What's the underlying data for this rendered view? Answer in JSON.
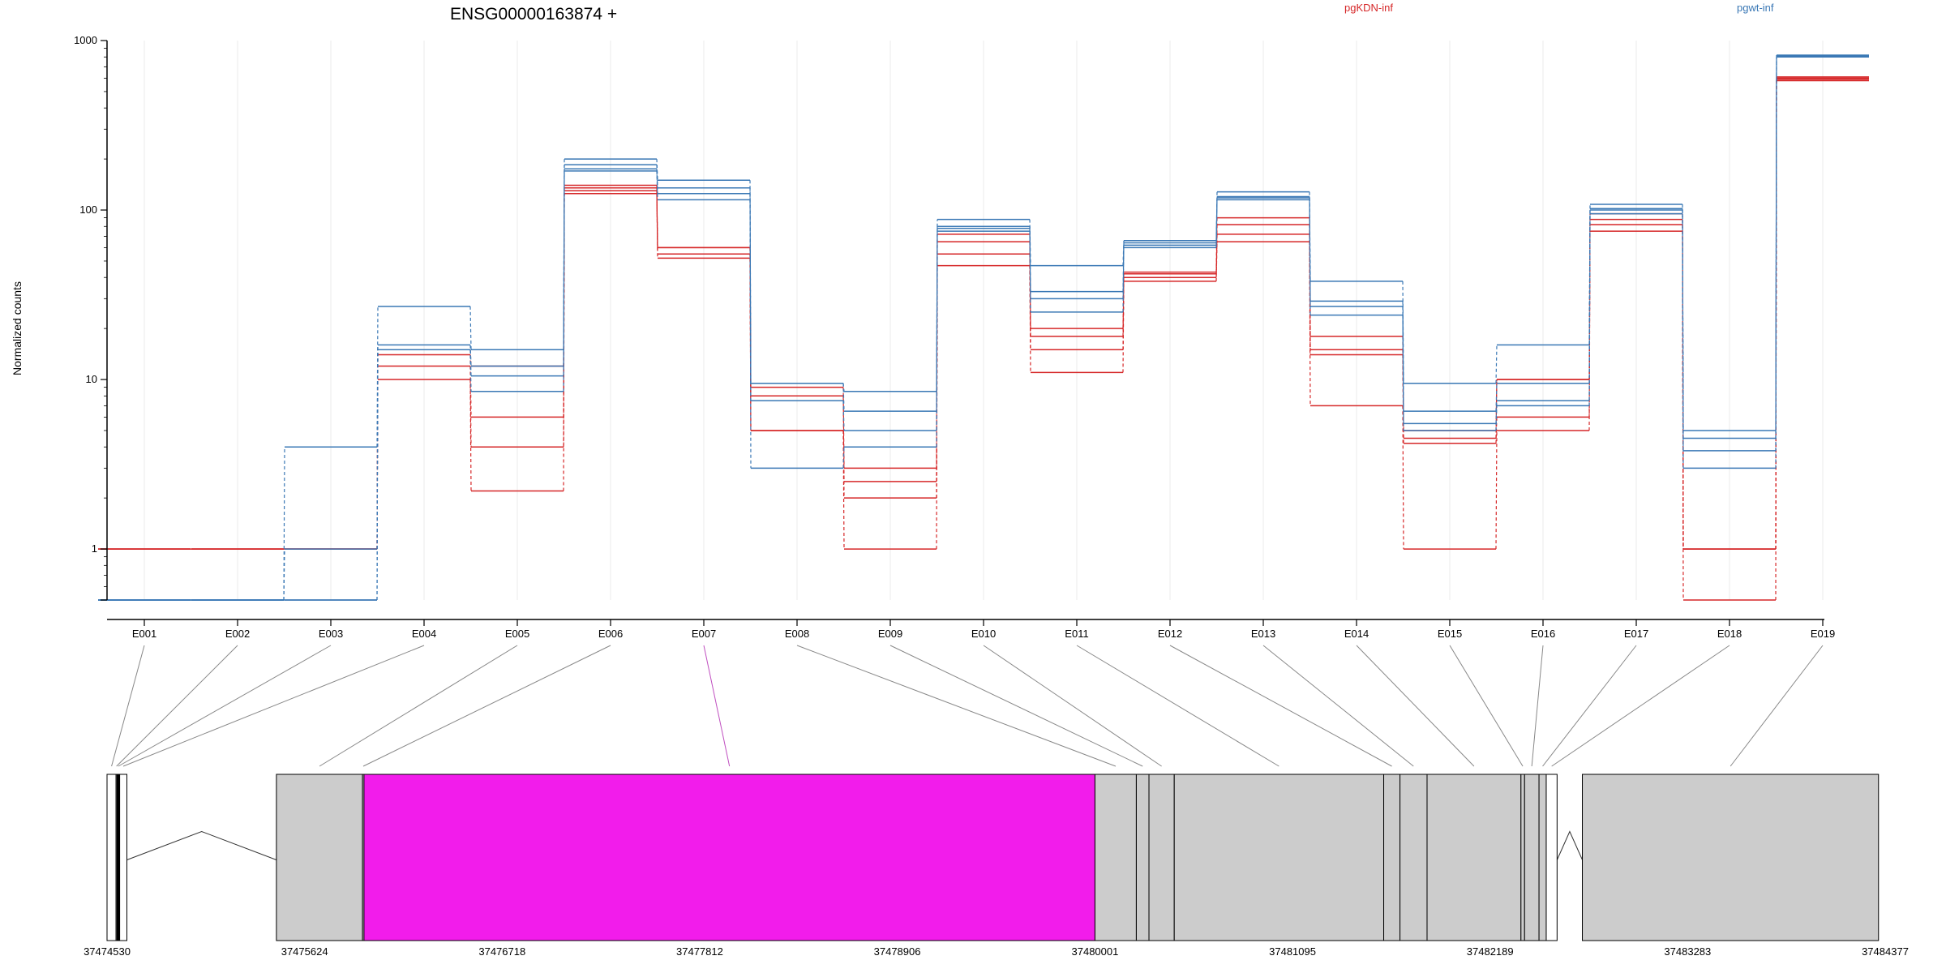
{
  "chart_data": {
    "type": "line",
    "title": "ENSG00000163874 +",
    "ylabel": "Normalized counts",
    "xlabel": "",
    "yscale": "log",
    "ylim": [
      0.5,
      1000
    ],
    "yticks": [
      1,
      10,
      100,
      1000
    ],
    "ytick_labels": [
      "1",
      "10",
      "100",
      "1000"
    ],
    "grid": "vertical",
    "legend_position": "top-right",
    "colors": {
      "pgKDN-inf": "#d62728",
      "pgwt-inf": "#3a78b5",
      "highlight": "#f21ceb",
      "exon_fill": "#cccccc"
    },
    "categories": [
      "E001",
      "E002",
      "E003",
      "E004",
      "E005",
      "E006",
      "E007",
      "E008",
      "E009",
      "E010",
      "E011",
      "E012",
      "E013",
      "E014",
      "E015",
      "E016",
      "E017",
      "E018",
      "E019"
    ],
    "series": [
      {
        "name": "pgKDN-inf",
        "group": "pgKDN-inf",
        "values": [
          1,
          1,
          1,
          15,
          12,
          135,
          60,
          9,
          3,
          72,
          20,
          43,
          90,
          18,
          5,
          10,
          95,
          1,
          600
        ]
      },
      {
        "name": "pgKDN-inf",
        "group": "pgKDN-inf",
        "values": [
          1,
          1,
          1,
          14,
          6,
          125,
          60,
          8,
          2,
          65,
          18,
          42,
          82,
          15,
          4.5,
          10,
          88,
          1,
          580
        ]
      },
      {
        "name": "pgKDN-inf",
        "group": "pgKDN-inf",
        "values": [
          1,
          1,
          1,
          12,
          4,
          130,
          52,
          5,
          2.5,
          55,
          15,
          40,
          72,
          14,
          4.2,
          6,
          82,
          1,
          610
        ]
      },
      {
        "name": "pgKDN-inf",
        "group": "pgKDN-inf",
        "values": [
          1,
          1,
          1,
          10,
          2.2,
          140,
          55,
          5,
          1,
          47,
          11,
          38,
          65,
          7,
          1,
          5,
          75,
          0.5,
          590
        ]
      },
      {
        "name": "pgwt-inf",
        "group": "pgwt-inf",
        "values": [
          0.5,
          0.5,
          4,
          27,
          15,
          200,
          150,
          9.5,
          8.5,
          88,
          47,
          66,
          128,
          38,
          9.5,
          16,
          108,
          5,
          820
        ]
      },
      {
        "name": "pgwt-inf",
        "group": "pgwt-inf",
        "values": [
          0.5,
          0.5,
          1,
          16,
          12,
          185,
          135,
          9.5,
          6.5,
          80,
          33,
          64,
          120,
          29,
          6.5,
          9.5,
          102,
          4.5,
          810
        ]
      },
      {
        "name": "pgwt-inf",
        "group": "pgwt-inf",
        "values": [
          0.5,
          0.5,
          0.5,
          15,
          10.5,
          170,
          115,
          7.5,
          5,
          75,
          25,
          62,
          115,
          27,
          5.5,
          7.5,
          95,
          3.8,
          800
        ]
      },
      {
        "name": "pgwt-inf",
        "group": "pgwt-inf",
        "values": [
          0.5,
          0.5,
          0.5,
          15,
          8.5,
          175,
          125,
          3,
          4,
          78,
          30,
          60,
          118,
          24,
          5,
          7,
          100,
          3,
          815
        ]
      }
    ],
    "gene_model": {
      "coordinate_labels": [
        "37474530",
        "37475624",
        "37476718",
        "37477812",
        "37478906",
        "37480001",
        "37481095",
        "37482189",
        "37483283",
        "37484377"
      ],
      "exons": [
        {
          "id": "E001",
          "start": 37474530,
          "end": 37474580,
          "fill": "#ffffff"
        },
        {
          "id": "E002",
          "start": 37474580,
          "end": 37474585,
          "fill": "#ffffff"
        },
        {
          "id": "E003",
          "start": 37474585,
          "end": 37474600,
          "fill": "#000000"
        },
        {
          "id": "E004",
          "start": 37474600,
          "end": 37474640,
          "fill": "#ffffff"
        },
        {
          "id": "E005",
          "start": 37475468,
          "end": 37475945,
          "fill": "#cccccc"
        },
        {
          "id": "E006",
          "start": 37475945,
          "end": 37475953,
          "fill": "#cccccc"
        },
        {
          "id": "E007",
          "start": 37475953,
          "end": 37480001,
          "fill": "#f21ceb"
        },
        {
          "id": "E008",
          "start": 37480001,
          "end": 37480230,
          "fill": "#cccccc"
        },
        {
          "id": "E009",
          "start": 37480230,
          "end": 37480300,
          "fill": "#cccccc"
        },
        {
          "id": "E010",
          "start": 37480300,
          "end": 37480440,
          "fill": "#cccccc"
        },
        {
          "id": "E011",
          "start": 37480440,
          "end": 37481600,
          "fill": "#cccccc"
        },
        {
          "id": "E012",
          "start": 37481600,
          "end": 37481690,
          "fill": "#cccccc"
        },
        {
          "id": "E013",
          "start": 37481690,
          "end": 37481840,
          "fill": "#cccccc"
        },
        {
          "id": "E014",
          "start": 37481840,
          "end": 37482360,
          "fill": "#cccccc"
        },
        {
          "id": "E015",
          "start": 37482360,
          "end": 37482380,
          "fill": "#cccccc"
        },
        {
          "id": "E016",
          "start": 37482380,
          "end": 37482460,
          "fill": "#cccccc"
        },
        {
          "id": "E017",
          "start": 37482460,
          "end": 37482500,
          "fill": "#cccccc"
        },
        {
          "id": "E018",
          "start": 37482500,
          "end": 37482560,
          "fill": "#ffffff"
        },
        {
          "id": "E019",
          "start": 37482700,
          "end": 37484340,
          "fill": "#cccccc"
        }
      ],
      "introns": [
        {
          "start": 37474640,
          "end": 37475468
        },
        {
          "start": 37482560,
          "end": 37482700
        }
      ],
      "highlight_exon": "E007"
    }
  }
}
